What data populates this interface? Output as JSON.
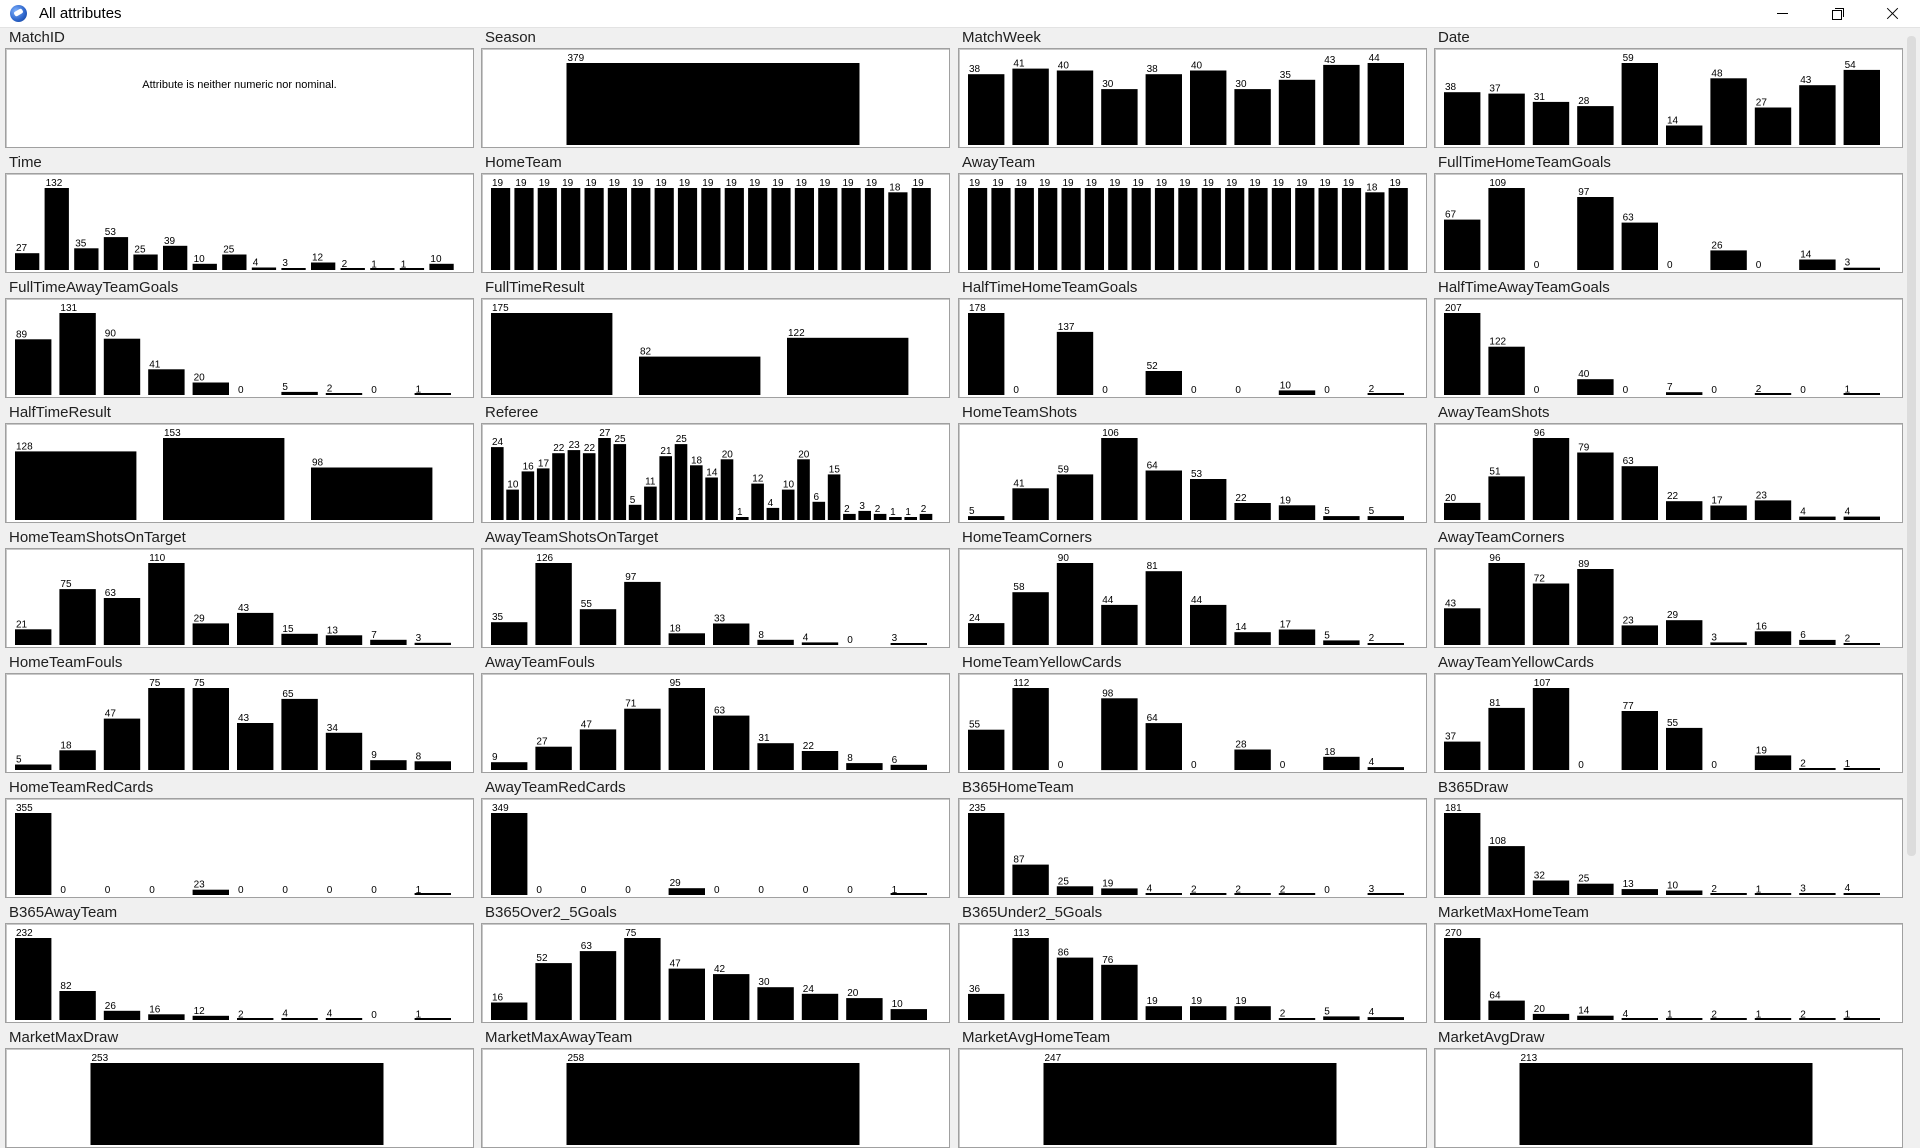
{
  "window": {
    "title": "All attributes",
    "icons": [
      "app-icon",
      "minimize-icon",
      "maximize-icon",
      "close-icon"
    ]
  },
  "panels": [
    {
      "name": "MatchID",
      "message": "Attribute is neither numeric nor nominal.",
      "values": []
    },
    {
      "name": "Season",
      "values": [
        379
      ]
    },
    {
      "name": "MatchWeek",
      "values": [
        38,
        41,
        40,
        30,
        38,
        40,
        30,
        35,
        43,
        44
      ]
    },
    {
      "name": "Date",
      "values": [
        38,
        37,
        31,
        28,
        59,
        14,
        48,
        27,
        43,
        54
      ]
    },
    {
      "name": "Time",
      "values": [
        27,
        132,
        35,
        53,
        25,
        39,
        10,
        25,
        4,
        3,
        12,
        2,
        1,
        1,
        10
      ]
    },
    {
      "name": "HomeTeam",
      "values": [
        19,
        19,
        19,
        19,
        19,
        19,
        19,
        19,
        19,
        19,
        19,
        19,
        19,
        19,
        19,
        19,
        19,
        18,
        19
      ]
    },
    {
      "name": "AwayTeam",
      "values": [
        19,
        19,
        19,
        19,
        19,
        19,
        19,
        19,
        19,
        19,
        19,
        19,
        19,
        19,
        19,
        19,
        19,
        18,
        19
      ]
    },
    {
      "name": "FullTimeHomeTeamGoals",
      "values": [
        67,
        109,
        0,
        97,
        63,
        0,
        26,
        0,
        14,
        3
      ]
    },
    {
      "name": "FullTimeAwayTeamGoals",
      "values": [
        89,
        131,
        90,
        41,
        20,
        0,
        5,
        2,
        0,
        1
      ]
    },
    {
      "name": "FullTimeResult",
      "values": [
        175,
        82,
        122
      ]
    },
    {
      "name": "HalfTimeHomeTeamGoals",
      "values": [
        178,
        0,
        137,
        0,
        52,
        0,
        0,
        10,
        0,
        2
      ]
    },
    {
      "name": "HalfTimeAwayTeamGoals",
      "values": [
        207,
        122,
        0,
        40,
        0,
        7,
        0,
        2,
        0,
        1
      ]
    },
    {
      "name": "HalfTimeResult",
      "values": [
        128,
        153,
        98
      ]
    },
    {
      "name": "Referee",
      "values": [
        24,
        10,
        16,
        17,
        22,
        23,
        22,
        27,
        25,
        5,
        11,
        21,
        25,
        18,
        14,
        20,
        1,
        12,
        4,
        10,
        20,
        6,
        15,
        2,
        3,
        2,
        1,
        1,
        2
      ]
    },
    {
      "name": "HomeTeamShots",
      "values": [
        5,
        41,
        59,
        106,
        64,
        53,
        22,
        19,
        5,
        5
      ]
    },
    {
      "name": "AwayTeamShots",
      "values": [
        20,
        51,
        96,
        79,
        63,
        22,
        17,
        23,
        4,
        4
      ]
    },
    {
      "name": "HomeTeamShotsOnTarget",
      "values": [
        21,
        75,
        63,
        110,
        29,
        43,
        15,
        13,
        7,
        3
      ]
    },
    {
      "name": "AwayTeamShotsOnTarget",
      "values": [
        35,
        126,
        55,
        97,
        18,
        33,
        8,
        4,
        0,
        3
      ]
    },
    {
      "name": "HomeTeamCorners",
      "values": [
        24,
        58,
        90,
        44,
        81,
        44,
        14,
        17,
        5,
        2
      ]
    },
    {
      "name": "AwayTeamCorners",
      "values": [
        43,
        96,
        72,
        89,
        23,
        29,
        3,
        16,
        6,
        2
      ]
    },
    {
      "name": "HomeTeamFouls",
      "values": [
        5,
        18,
        47,
        75,
        75,
        43,
        65,
        34,
        9,
        8
      ]
    },
    {
      "name": "AwayTeamFouls",
      "values": [
        9,
        27,
        47,
        71,
        95,
        63,
        31,
        22,
        8,
        6
      ]
    },
    {
      "name": "HomeTeamYellowCards",
      "values": [
        55,
        112,
        0,
        98,
        64,
        0,
        28,
        0,
        18,
        4
      ]
    },
    {
      "name": "AwayTeamYellowCards",
      "values": [
        37,
        81,
        107,
        0,
        77,
        55,
        0,
        19,
        2,
        1
      ]
    },
    {
      "name": "HomeTeamRedCards",
      "values": [
        355,
        0,
        0,
        0,
        23,
        0,
        0,
        0,
        0,
        1
      ]
    },
    {
      "name": "AwayTeamRedCards",
      "values": [
        349,
        0,
        0,
        0,
        29,
        0,
        0,
        0,
        0,
        1
      ]
    },
    {
      "name": "B365HomeTeam",
      "values": [
        235,
        87,
        25,
        19,
        4,
        2,
        2,
        2,
        0,
        3
      ]
    },
    {
      "name": "B365Draw",
      "values": [
        181,
        108,
        32,
        25,
        13,
        10,
        2,
        1,
        3,
        4
      ]
    },
    {
      "name": "B365AwayTeam",
      "values": [
        232,
        82,
        26,
        16,
        12,
        2,
        4,
        4,
        0,
        1
      ]
    },
    {
      "name": "B365Over2_5Goals",
      "values": [
        16,
        52,
        63,
        75,
        47,
        42,
        30,
        24,
        20,
        10
      ]
    },
    {
      "name": "B365Under2_5Goals",
      "values": [
        36,
        113,
        86,
        76,
        19,
        19,
        19,
        2,
        5,
        4
      ]
    },
    {
      "name": "MarketMaxHomeTeam",
      "values": [
        270,
        64,
        20,
        14,
        4,
        1,
        2,
        1,
        2,
        1
      ]
    },
    {
      "name": "MarketMaxDraw",
      "values": [
        253
      ]
    },
    {
      "name": "MarketMaxAwayTeam",
      "values": [
        258
      ]
    },
    {
      "name": "MarketAvgHomeTeam",
      "values": [
        247
      ]
    },
    {
      "name": "MarketAvgDraw",
      "values": [
        213
      ]
    }
  ]
}
